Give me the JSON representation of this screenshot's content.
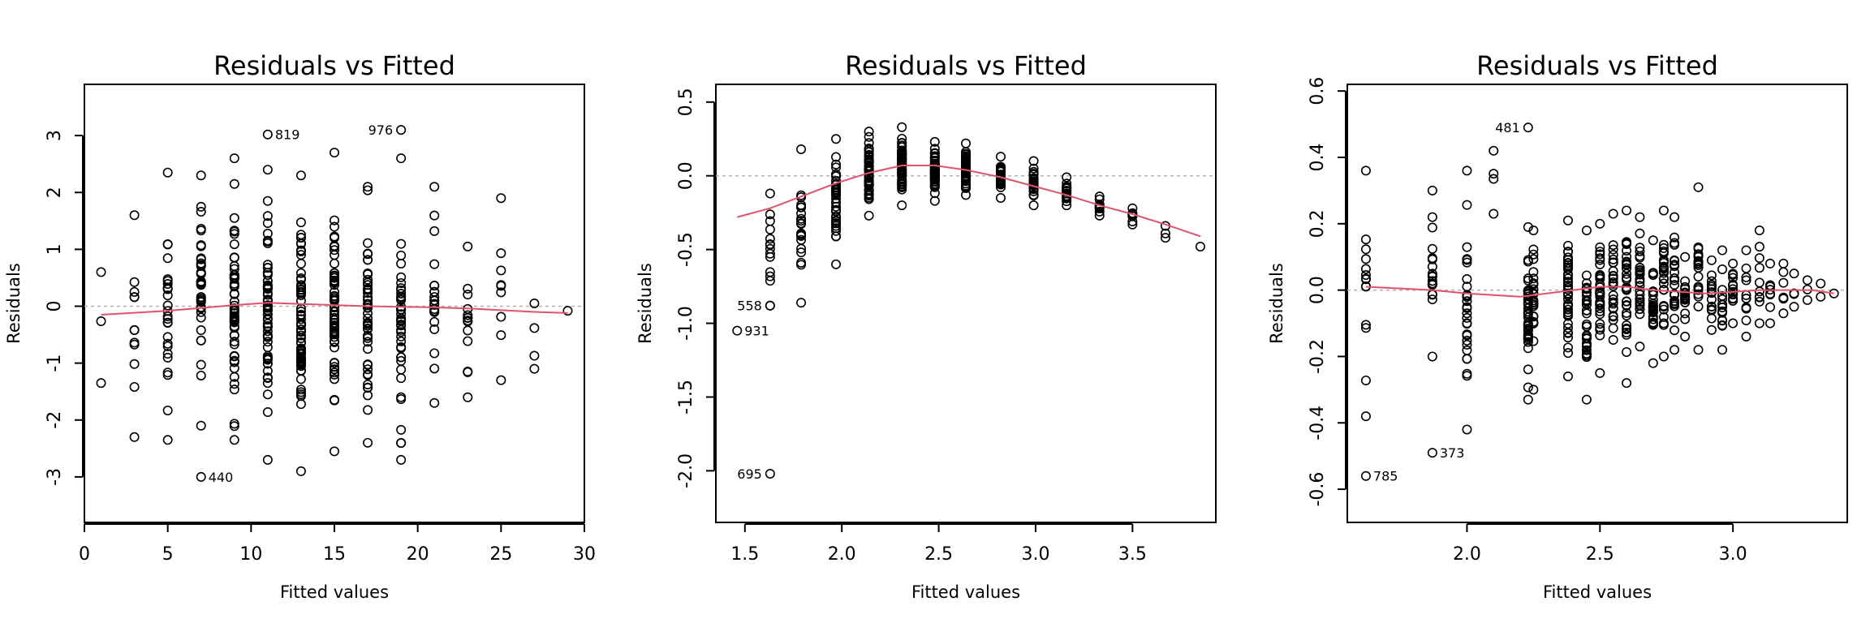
{
  "colors": {
    "smooth": "#DF536B",
    "zero_line": "#b3b3b3",
    "points": "#000000"
  },
  "chart_data": [
    {
      "type": "scatter",
      "title": "Residuals vs Fitted",
      "xlabel": "Fitted values",
      "ylabel": "Residuals",
      "xlim": [
        0,
        30
      ],
      "ylim": [
        -3.8,
        3.9
      ],
      "xticks": [
        0,
        5,
        10,
        15,
        20,
        25,
        30
      ],
      "yticks": [
        -3,
        -2,
        -1,
        0,
        1,
        2,
        3
      ],
      "columns": [
        {
          "x": 1,
          "lo": -1.35,
          "hi": 0.6,
          "n": 3
        },
        {
          "x": 3,
          "lo": -2.3,
          "hi": 1.6,
          "n": 12
        },
        {
          "x": 5,
          "lo": -2.35,
          "hi": 2.35,
          "n": 26
        },
        {
          "x": 7,
          "lo": -2.1,
          "hi": 2.3,
          "n": 36
        },
        {
          "x": 9,
          "lo": -2.35,
          "hi": 2.6,
          "n": 54
        },
        {
          "x": 11,
          "lo": -2.7,
          "hi": 2.4,
          "n": 64
        },
        {
          "x": 13,
          "lo": -2.9,
          "hi": 2.3,
          "n": 68
        },
        {
          "x": 15,
          "lo": -2.55,
          "hi": 2.7,
          "n": 62
        },
        {
          "x": 17,
          "lo": -2.4,
          "hi": 2.1,
          "n": 46
        },
        {
          "x": 19,
          "lo": -2.7,
          "hi": 2.6,
          "n": 40
        },
        {
          "x": 21,
          "lo": -1.7,
          "hi": 2.1,
          "n": 22
        },
        {
          "x": 23,
          "lo": -1.6,
          "hi": 1.05,
          "n": 14
        },
        {
          "x": 25,
          "lo": -1.3,
          "hi": 1.9,
          "n": 9
        },
        {
          "x": 27,
          "lo": -1.1,
          "hi": 0.05,
          "n": 4
        },
        {
          "x": 29,
          "lo": -0.08,
          "hi": -0.08,
          "n": 1
        }
      ],
      "labeled_points": [
        {
          "x": 11,
          "y": 3.02,
          "label": "819",
          "side": "right"
        },
        {
          "x": 19,
          "y": 3.1,
          "label": "976",
          "side": "left"
        },
        {
          "x": 7,
          "y": -3.0,
          "label": "440",
          "side": "right"
        }
      ],
      "smooth": [
        [
          1,
          -0.15
        ],
        [
          5,
          -0.08
        ],
        [
          9,
          0.02
        ],
        [
          11,
          0.06
        ],
        [
          13,
          0.04
        ],
        [
          15,
          0.02
        ],
        [
          17,
          0.0
        ],
        [
          19,
          -0.01
        ],
        [
          21,
          -0.02
        ],
        [
          23,
          -0.04
        ],
        [
          25,
          -0.07
        ],
        [
          27,
          -0.1
        ],
        [
          29,
          -0.12
        ]
      ]
    },
    {
      "type": "scatter",
      "title": "Residuals vs Fitted",
      "xlabel": "Fitted values",
      "ylabel": "Residuals",
      "xlim": [
        1.35,
        3.93
      ],
      "ylim": [
        -2.35,
        0.62
      ],
      "xticks": [
        1.5,
        2.0,
        2.5,
        3.0,
        3.5
      ],
      "xtick_labels": [
        "1.5",
        "2.0",
        "2.5",
        "3.0",
        "3.5"
      ],
      "yticks": [
        -2.0,
        -1.5,
        -1.0,
        -0.5,
        0.0,
        0.5
      ],
      "ytick_labels": [
        "-2.0",
        "-1.5",
        "-1.0",
        "-0.5",
        "0.0",
        "0.5"
      ],
      "columns": [
        {
          "x": 1.63,
          "lo": -0.88,
          "hi": -0.12,
          "n": 14
        },
        {
          "x": 1.79,
          "lo": -0.86,
          "hi": 0.18,
          "n": 22
        },
        {
          "x": 1.97,
          "lo": -0.6,
          "hi": 0.25,
          "n": 36
        },
        {
          "x": 2.14,
          "lo": -0.27,
          "hi": 0.3,
          "n": 58
        },
        {
          "x": 2.31,
          "lo": -0.2,
          "hi": 0.33,
          "n": 58
        },
        {
          "x": 2.48,
          "lo": -0.17,
          "hi": 0.23,
          "n": 54
        },
        {
          "x": 2.64,
          "lo": -0.13,
          "hi": 0.22,
          "n": 48
        },
        {
          "x": 2.82,
          "lo": -0.15,
          "hi": 0.13,
          "n": 36
        },
        {
          "x": 2.99,
          "lo": -0.2,
          "hi": 0.1,
          "n": 28
        },
        {
          "x": 3.16,
          "lo": -0.2,
          "hi": -0.01,
          "n": 18
        },
        {
          "x": 3.33,
          "lo": -0.27,
          "hi": -0.14,
          "n": 10
        },
        {
          "x": 3.5,
          "lo": -0.33,
          "hi": -0.22,
          "n": 7
        },
        {
          "x": 3.67,
          "lo": -0.42,
          "hi": -0.34,
          "n": 3
        },
        {
          "x": 3.85,
          "lo": -0.48,
          "hi": -0.48,
          "n": 1
        }
      ],
      "labeled_points": [
        {
          "x": 1.63,
          "y": -0.88,
          "label": "558",
          "side": "left"
        },
        {
          "x": 1.46,
          "y": -1.05,
          "label": "931",
          "side": "right"
        },
        {
          "x": 1.63,
          "y": -2.02,
          "label": "695",
          "side": "left"
        }
      ],
      "smooth": [
        [
          1.46,
          -0.28
        ],
        [
          1.63,
          -0.22
        ],
        [
          1.79,
          -0.14
        ],
        [
          1.97,
          -0.05
        ],
        [
          2.14,
          0.02
        ],
        [
          2.31,
          0.07
        ],
        [
          2.48,
          0.07
        ],
        [
          2.64,
          0.04
        ],
        [
          2.82,
          -0.01
        ],
        [
          2.99,
          -0.07
        ],
        [
          3.16,
          -0.13
        ],
        [
          3.33,
          -0.2
        ],
        [
          3.5,
          -0.26
        ],
        [
          3.67,
          -0.33
        ],
        [
          3.85,
          -0.41
        ]
      ]
    },
    {
      "type": "scatter",
      "title": "Residuals vs Fitted",
      "xlabel": "Fitted values",
      "ylabel": "Residuals",
      "xlim": [
        1.55,
        3.43
      ],
      "ylim": [
        -0.7,
        0.62
      ],
      "xticks": [
        2.0,
        2.5,
        3.0
      ],
      "xtick_labels": [
        "2.0",
        "2.5",
        "3.0"
      ],
      "yticks": [
        -0.6,
        -0.4,
        -0.2,
        0.0,
        0.2,
        0.4,
        0.6
      ],
      "ytick_labels": [
        "-0.6",
        "-0.4",
        "-0.2",
        "0.0",
        "0.2",
        "0.4",
        "0.6"
      ],
      "columns": [
        {
          "x": 1.62,
          "lo": -0.38,
          "hi": 0.36,
          "n": 14
        },
        {
          "x": 1.87,
          "lo": -0.2,
          "hi": 0.3,
          "n": 18
        },
        {
          "x": 2.0,
          "lo": -0.42,
          "hi": 0.36,
          "n": 30
        },
        {
          "x": 2.1,
          "lo": 0.23,
          "hi": 0.42,
          "n": 4
        },
        {
          "x": 2.23,
          "lo": -0.33,
          "hi": 0.19,
          "n": 40
        },
        {
          "x": 2.25,
          "lo": -0.3,
          "hi": 0.18,
          "n": 24
        },
        {
          "x": 2.38,
          "lo": -0.26,
          "hi": 0.21,
          "n": 40
        },
        {
          "x": 2.45,
          "lo": -0.33,
          "hi": 0.18,
          "n": 34
        },
        {
          "x": 2.5,
          "lo": -0.25,
          "hi": 0.2,
          "n": 30
        },
        {
          "x": 2.55,
          "lo": -0.15,
          "hi": 0.23,
          "n": 26
        },
        {
          "x": 2.6,
          "lo": -0.28,
          "hi": 0.24,
          "n": 34
        },
        {
          "x": 2.65,
          "lo": -0.17,
          "hi": 0.22,
          "n": 28
        },
        {
          "x": 2.7,
          "lo": -0.22,
          "hi": 0.15,
          "n": 28
        },
        {
          "x": 2.74,
          "lo": -0.2,
          "hi": 0.24,
          "n": 26
        },
        {
          "x": 2.78,
          "lo": -0.18,
          "hi": 0.22,
          "n": 22
        },
        {
          "x": 2.82,
          "lo": -0.14,
          "hi": 0.1,
          "n": 20
        },
        {
          "x": 2.87,
          "lo": -0.18,
          "hi": 0.31,
          "n": 20
        },
        {
          "x": 2.92,
          "lo": -0.12,
          "hi": 0.09,
          "n": 16
        },
        {
          "x": 2.96,
          "lo": -0.18,
          "hi": 0.12,
          "n": 16
        },
        {
          "x": 3.0,
          "lo": -0.1,
          "hi": 0.08,
          "n": 14
        },
        {
          "x": 3.05,
          "lo": -0.14,
          "hi": 0.12,
          "n": 12
        },
        {
          "x": 3.1,
          "lo": -0.1,
          "hi": 0.18,
          "n": 10
        },
        {
          "x": 3.14,
          "lo": -0.1,
          "hi": 0.08,
          "n": 8
        },
        {
          "x": 3.19,
          "lo": -0.07,
          "hi": 0.08,
          "n": 6
        },
        {
          "x": 3.23,
          "lo": -0.05,
          "hi": 0.05,
          "n": 4
        },
        {
          "x": 3.28,
          "lo": -0.03,
          "hi": 0.03,
          "n": 3
        },
        {
          "x": 3.33,
          "lo": -0.02,
          "hi": 0.02,
          "n": 2
        },
        {
          "x": 3.38,
          "lo": -0.01,
          "hi": -0.01,
          "n": 1
        }
      ],
      "labeled_points": [
        {
          "x": 2.23,
          "y": 0.49,
          "label": "481",
          "side": "left"
        },
        {
          "x": 1.62,
          "y": -0.56,
          "label": "785",
          "side": "right"
        },
        {
          "x": 1.87,
          "y": -0.49,
          "label": "373",
          "side": "right"
        }
      ],
      "smooth": [
        [
          1.62,
          0.01
        ],
        [
          1.87,
          0.0
        ],
        [
          2.0,
          -0.01
        ],
        [
          2.1,
          -0.015
        ],
        [
          2.2,
          -0.02
        ],
        [
          2.3,
          -0.01
        ],
        [
          2.4,
          0.0
        ],
        [
          2.5,
          0.01
        ],
        [
          2.6,
          0.01
        ],
        [
          2.7,
          0.0
        ],
        [
          2.8,
          -0.005
        ],
        [
          2.9,
          -0.01
        ],
        [
          3.0,
          -0.005
        ],
        [
          3.1,
          0.0
        ],
        [
          3.2,
          0.0
        ],
        [
          3.3,
          0.0
        ],
        [
          3.38,
          -0.01
        ]
      ]
    }
  ]
}
